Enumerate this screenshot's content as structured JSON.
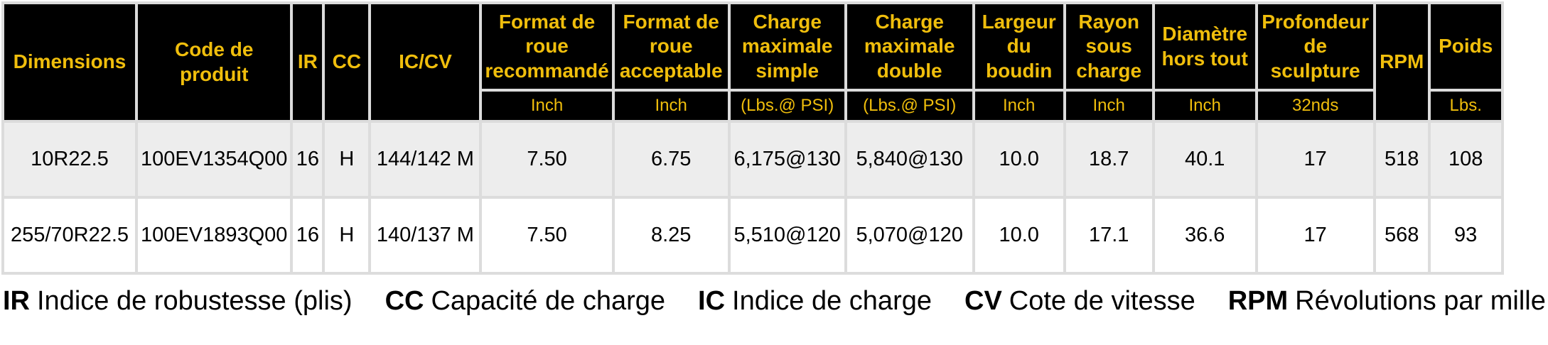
{
  "table": {
    "columns": [
      {
        "label": "Dimensions",
        "unit": null
      },
      {
        "label": "Code de produit",
        "unit": null
      },
      {
        "label": "IR",
        "unit": null
      },
      {
        "label": "CC",
        "unit": null
      },
      {
        "label": "IC/CV",
        "unit": null
      },
      {
        "label": "Format de roue recommandé",
        "unit": "Inch"
      },
      {
        "label": "Format de roue acceptable",
        "unit": "Inch"
      },
      {
        "label": "Charge maximale simple",
        "unit": "(Lbs.@ PSI)"
      },
      {
        "label": "Charge maximale double",
        "unit": "(Lbs.@ PSI)"
      },
      {
        "label": "Largeur du boudin",
        "unit": "Inch"
      },
      {
        "label": "Rayon sous charge",
        "unit": "Inch"
      },
      {
        "label": "Diamètre hors tout",
        "unit": "Inch"
      },
      {
        "label": "Profondeur de sculpture",
        "unit": "32nds"
      },
      {
        "label": "RPM",
        "unit": null
      },
      {
        "label": "Poids",
        "unit": "Lbs."
      }
    ],
    "rows": [
      [
        "10R22.5",
        "100EV1354Q00",
        "16",
        "H",
        "144/142 M",
        "7.50",
        "6.75",
        "6,175@130",
        "5,840@130",
        "10.0",
        "18.7",
        "40.1",
        "17",
        "518",
        "108"
      ],
      [
        "255/70R22.5",
        "100EV1893Q00",
        "16",
        "H",
        "140/137 M",
        "7.50",
        "8.25",
        "5,510@120",
        "5,070@120",
        "10.0",
        "17.1",
        "36.6",
        "17",
        "568",
        "93"
      ]
    ]
  },
  "legend": [
    {
      "abbr": "IR",
      "text": "Indice de robustesse (plis)"
    },
    {
      "abbr": "CC",
      "text": "Capacité de charge"
    },
    {
      "abbr": "IC",
      "text": "Indice de charge"
    },
    {
      "abbr": "CV",
      "text": "Cote de vitesse"
    },
    {
      "abbr": "RPM",
      "text": "Révolutions par mille"
    }
  ],
  "colors": {
    "header_background": "#000000",
    "header_text": "#F0BE0C",
    "row_alternate_background": "#EDEDED",
    "row_background": "#FFFFFF",
    "grid_border": "#DCDCDC",
    "body_text": "#000000"
  }
}
